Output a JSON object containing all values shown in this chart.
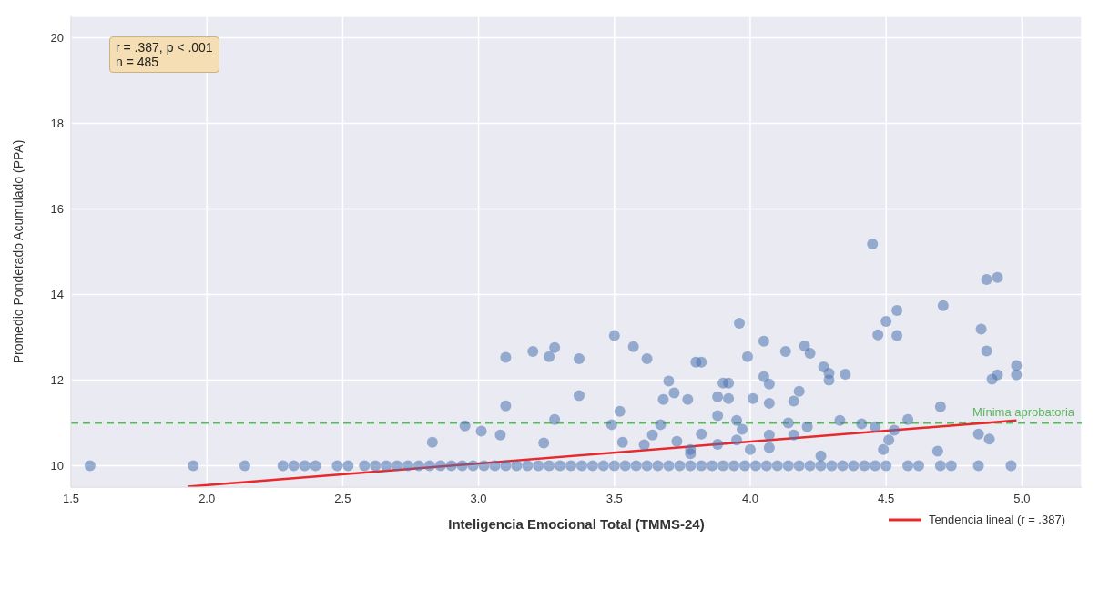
{
  "chart_data": {
    "type": "scatter",
    "xlabel": "Inteligencia Emocional Total (TMMS-24)",
    "ylabel": "Promedio Ponderado Acumulado (PPA)",
    "xlim": [
      1.5,
      5.22
    ],
    "xticks": [
      {
        "value": 1.5,
        "label": "1.5"
      },
      {
        "value": 2.0,
        "label": "2.0"
      },
      {
        "value": 2.5,
        "label": "2.5"
      },
      {
        "value": 3.0,
        "label": "3.0"
      },
      {
        "value": 3.5,
        "label": "3.5"
      },
      {
        "value": 4.0,
        "label": "4.0"
      },
      {
        "value": 4.5,
        "label": "4.5"
      },
      {
        "value": 5.0,
        "label": "5.0"
      }
    ],
    "ylim": [
      9.5,
      20.5
    ],
    "yticks": [
      10,
      12,
      14,
      16,
      18,
      20
    ],
    "grid": true,
    "legend": "bottom right",
    "annotations": [
      "r = .387, p < .001\nn = 485"
    ],
    "ref_lines": [
      {
        "axis": "y",
        "value": 11,
        "label": "Mínima aprobatoria",
        "color": "#5cb85c",
        "line_style": "dashed"
      }
    ],
    "series": [
      {
        "type": "scatter",
        "marker": "circle",
        "color": "#4c72b0",
        "x": [
          1.57,
          1.95,
          2.14,
          2.28,
          2.32,
          2.36,
          2.4,
          2.48,
          2.52,
          2.58,
          2.62,
          2.66,
          2.7,
          2.74,
          2.78,
          2.82,
          2.86,
          2.9,
          2.94,
          2.98,
          3.02,
          3.06,
          3.1,
          3.14,
          3.18,
          3.22,
          3.26,
          3.3,
          3.34,
          3.38,
          3.42,
          3.46,
          3.5,
          3.54,
          3.58,
          3.62,
          3.66,
          3.7,
          3.74,
          3.78,
          3.82,
          3.86,
          3.9,
          3.94,
          3.98,
          4.02,
          4.06,
          4.1,
          4.14,
          4.18,
          4.22,
          4.26,
          4.3,
          4.34,
          4.38,
          4.42,
          4.46,
          4.5,
          4.58,
          4.62,
          4.7,
          4.74,
          4.84,
          4.96,
          3.1,
          3.1,
          3.2,
          3.26,
          3.28,
          3.37,
          3.37,
          3.28,
          3.24,
          2.83,
          2.95,
          3.01,
          3.08,
          3.5,
          3.57,
          3.62,
          3.7,
          3.72,
          3.77,
          3.8,
          3.82,
          3.52,
          3.49,
          3.53,
          3.64,
          3.67,
          3.73,
          3.61,
          3.78,
          3.82,
          3.68,
          3.88,
          3.9,
          3.88,
          3.88,
          3.78,
          4.45,
          4.87,
          4.91,
          4.71,
          4.54,
          4.5,
          4.47,
          4.54,
          4.85,
          4.87,
          4.98,
          4.98,
          4.89,
          4.91,
          3.96,
          4.05,
          3.99,
          4.13,
          4.2,
          4.22,
          4.27,
          4.29,
          4.29,
          4.35,
          4.05,
          4.07,
          3.92,
          4.18,
          4.16,
          4.07,
          4.01,
          3.92,
          3.95,
          3.97,
          4.14,
          4.21,
          4.33,
          4.41,
          4.46,
          4.58,
          4.53,
          4.51,
          4.49,
          4.69,
          4.84,
          4.88,
          4.7,
          4.07,
          4.16,
          4.07,
          4.0,
          3.95,
          4.26
        ],
        "values": [
          10,
          10,
          10,
          10,
          10,
          10,
          10,
          10,
          10,
          10,
          10,
          10,
          10,
          10,
          10,
          10,
          10,
          10,
          10,
          10,
          10,
          10,
          10,
          10,
          10,
          10,
          10,
          10,
          10,
          10,
          10,
          10,
          10,
          10,
          10,
          10,
          10,
          10,
          10,
          10,
          10,
          10,
          10,
          10,
          10,
          10,
          10,
          10,
          10,
          10,
          10,
          10,
          10,
          10,
          10,
          10,
          10,
          10,
          10,
          10,
          10,
          10,
          10,
          10,
          12.53,
          11.4,
          12.67,
          12.55,
          12.76,
          12.5,
          11.64,
          11.08,
          10.53,
          10.55,
          10.93,
          10.81,
          10.72,
          13.04,
          12.78,
          12.5,
          11.98,
          11.7,
          11.55,
          12.42,
          12.42,
          11.27,
          10.96,
          10.55,
          10.72,
          10.96,
          10.57,
          10.49,
          10.38,
          10.74,
          11.55,
          11.61,
          11.93,
          11.17,
          10.5,
          10.28,
          15.18,
          14.35,
          14.4,
          13.74,
          13.63,
          13.37,
          13.06,
          13.04,
          13.19,
          12.68,
          12.34,
          12.12,
          12.02,
          12.12,
          13.33,
          12.91,
          12.55,
          12.67,
          12.8,
          12.63,
          12.31,
          12.16,
          12.0,
          12.14,
          12.08,
          11.91,
          11.93,
          11.74,
          11.51,
          11.46,
          11.57,
          11.57,
          11.06,
          10.85,
          11.0,
          10.91,
          11.06,
          10.98,
          10.91,
          11.08,
          10.83,
          10.6,
          10.38,
          10.34,
          10.74,
          10.62,
          11.38,
          10.72,
          10.72,
          10.42,
          10.38,
          10.6,
          10.23
        ]
      },
      {
        "type": "line",
        "marker": "none",
        "name": "Tendencia lineal (r = .387)",
        "color": "#e8282b",
        "x": [
          1.93,
          4.98
        ],
        "values": [
          9.51,
          11.06
        ]
      }
    ]
  }
}
